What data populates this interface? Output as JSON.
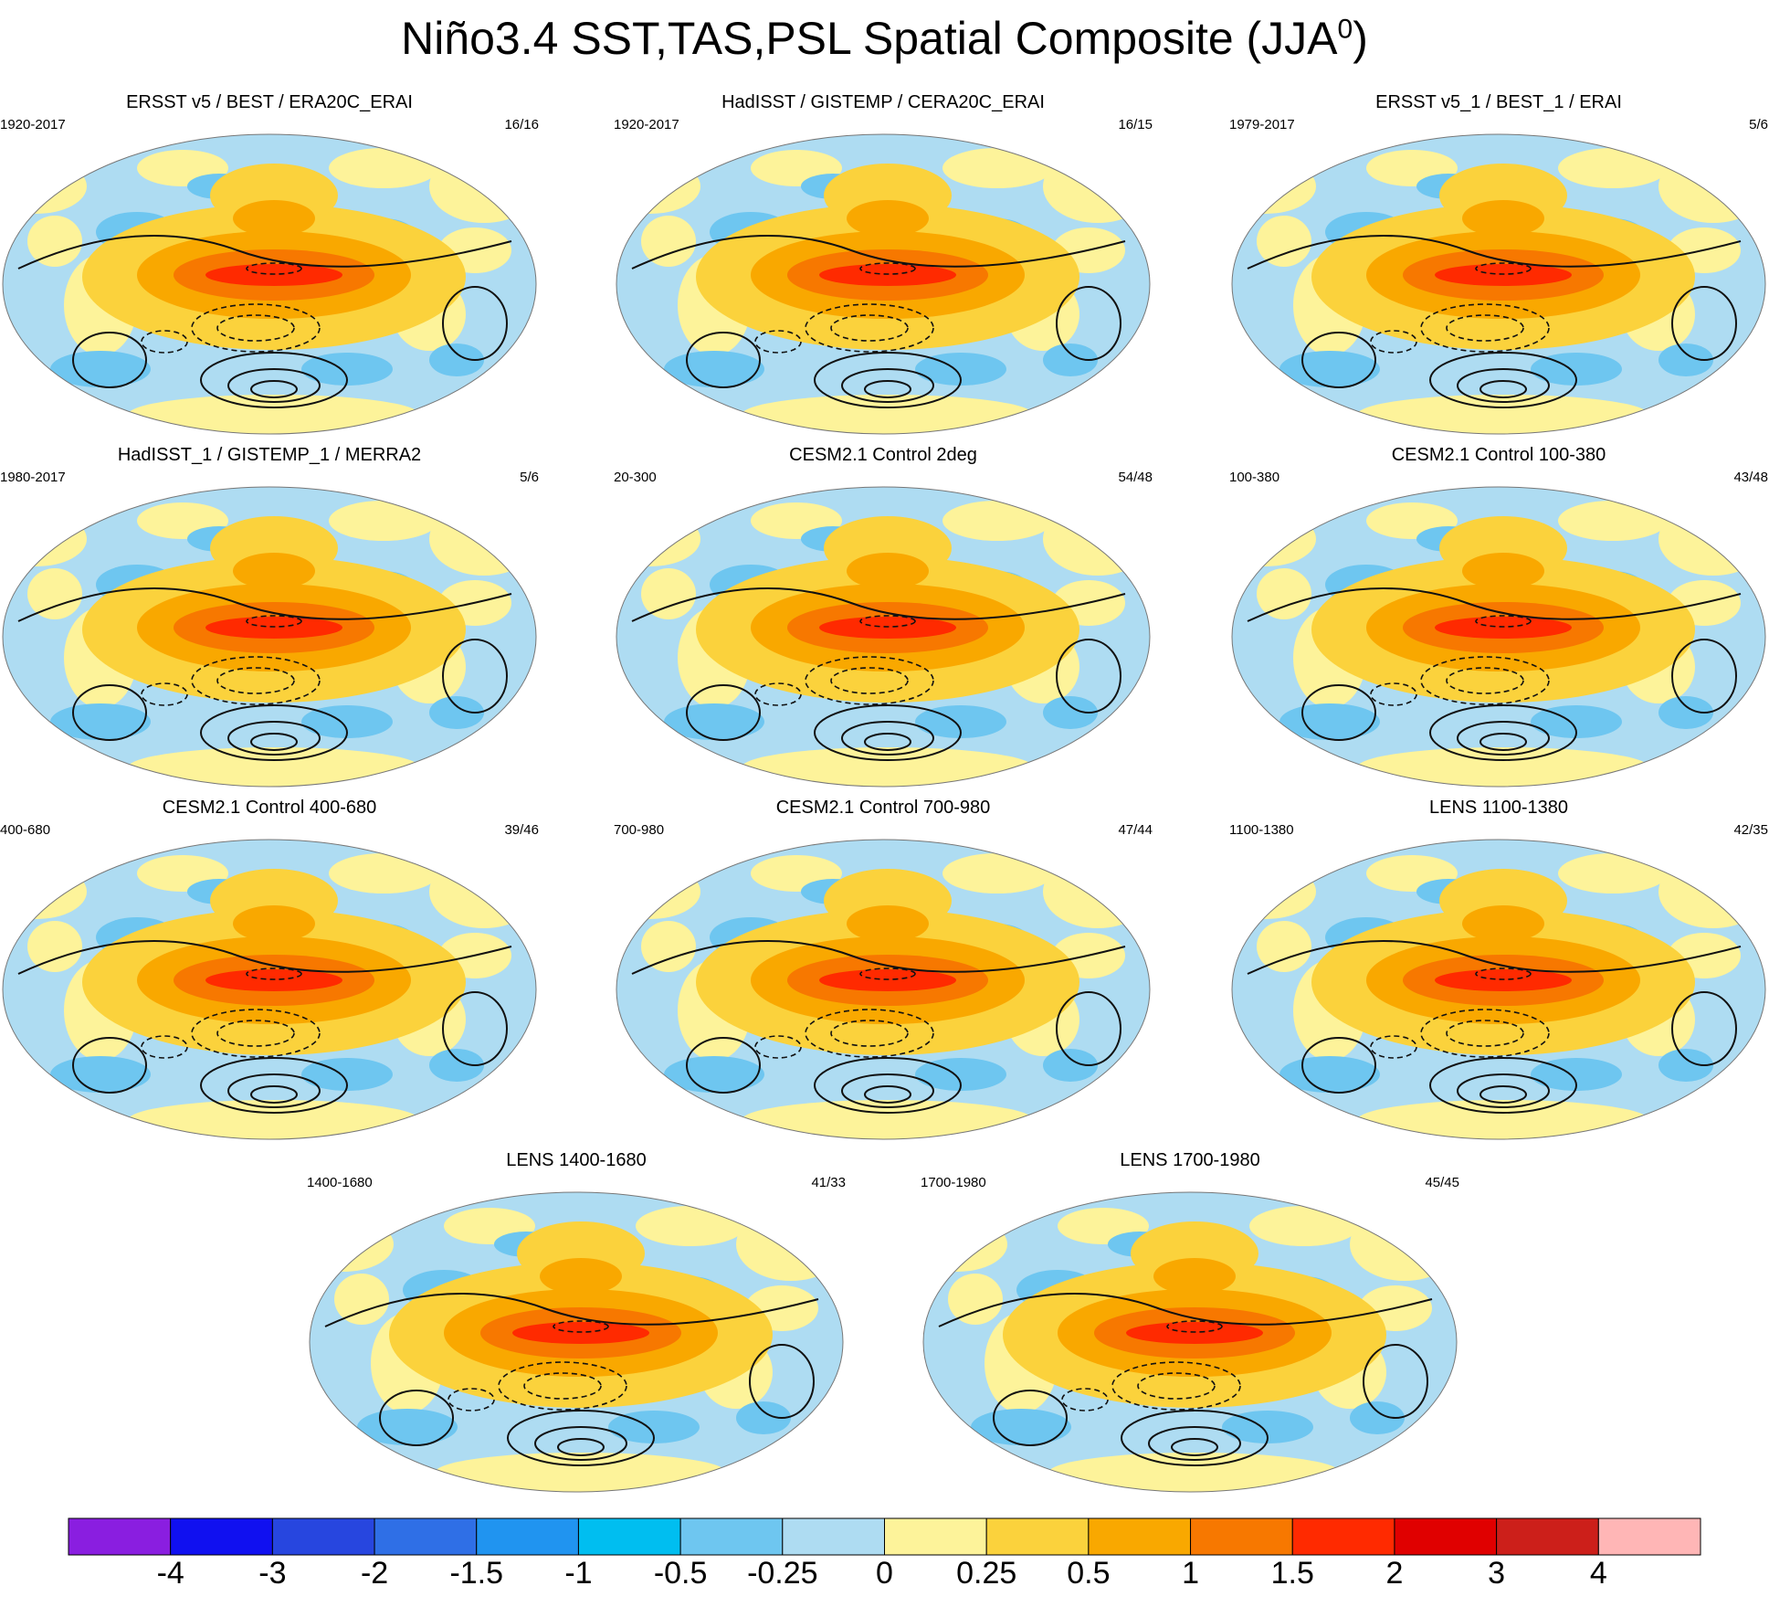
{
  "title": {
    "text": "Niño3.4 SST,TAS,PSL Spatial Composite (JJA",
    "superscript": "0",
    "close": ")"
  },
  "panels": [
    {
      "title": "ERSST v5 / BEST / ERA20C_ERAI",
      "period": "1920-2017",
      "count": "16/16"
    },
    {
      "title": "HadISST / GISTEMP / CERA20C_ERAI",
      "period": "1920-2017",
      "count": "16/15"
    },
    {
      "title": "ERSST v5_1 / BEST_1 / ERAI",
      "period": "1979-2017",
      "count": "5/6"
    },
    {
      "title": "HadISST_1 / GISTEMP_1 / MERRA2",
      "period": "1980-2017",
      "count": "5/6"
    },
    {
      "title": "CESM2.1 Control 2deg",
      "period": "20-300",
      "count": "54/48"
    },
    {
      "title": "CESM2.1 Control 100-380",
      "period": "100-380",
      "count": "43/48"
    },
    {
      "title": "CESM2.1 Control 400-680",
      "period": "400-680",
      "count": "39/46"
    },
    {
      "title": "CESM2.1 Control 700-980",
      "period": "700-980",
      "count": "47/44"
    },
    {
      "title": "LENS 1100-1380",
      "period": "1100-1380",
      "count": "42/35"
    },
    {
      "title": "LENS 1400-1680",
      "period": "1400-1680",
      "count": "41/33"
    },
    {
      "title": "LENS 1700-1980",
      "period": "1700-1980",
      "count": "45/45"
    }
  ],
  "chart_data": {
    "type": "heatmap",
    "description_kind": "composite maps with contour overlay",
    "colorbar": {
      "labels": [
        "-4",
        "-3",
        "-2",
        "-1.5",
        "-1",
        "-0.5",
        "-0.25",
        "0",
        "0.25",
        "0.5",
        "1",
        "1.5",
        "2",
        "3",
        "4"
      ],
      "colors": [
        "#8a1ee0",
        "#1010f0",
        "#2746df",
        "#2f6fe6",
        "#2094f0",
        "#00bef0",
        "#6ec6f0",
        "#aedcf2",
        "#fdf39a",
        "#fbd23c",
        "#f9a800",
        "#f77800",
        "#ff2a00",
        "#e00000",
        "#cc1f1a",
        "#ffb6b6"
      ]
    },
    "colors": {
      "ocean_base": "#aedcf2",
      "land_tint": "#fdf39a",
      "warm_band_outer": "#fbd23c",
      "warm_band_mid": "#f9a800",
      "warm_band_inner": "#f77800",
      "warm_core": "#ff2a00",
      "cold_patch": "#6ec6f0",
      "contour": "#111111",
      "coast": "#ffffff"
    }
  }
}
